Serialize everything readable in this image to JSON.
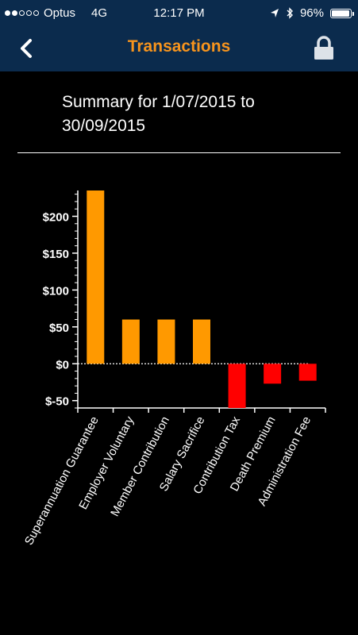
{
  "status": {
    "carrier": "Optus",
    "network": "4G",
    "time": "12:17 PM",
    "battery": "96%",
    "signal_bars": 2
  },
  "header": {
    "title": "Transactions",
    "back_icon": "chevron-left-icon",
    "lock_icon": "lock-icon"
  },
  "summary": {
    "text": "Summary for 1/07/2015 to 30/09/2015"
  },
  "colors": {
    "nav_bg": "#0b2b4d",
    "accent": "#f7941d",
    "positive_bar": "#ff9900",
    "negative_bar": "#ff0000"
  },
  "chart_data": {
    "type": "bar",
    "categories": [
      "Superannuation Guarantee",
      "Employer Voluntary",
      "Member Contribution",
      "Salary Sacrifice",
      "Contribution Tax",
      "Death Premium",
      "Administration Fee"
    ],
    "values": [
      235,
      60,
      60,
      60,
      -60,
      -27,
      -23
    ],
    "ylim": [
      -60,
      235
    ],
    "yticks": [
      -50,
      0,
      50,
      100,
      150,
      200
    ],
    "ytick_labels": [
      "$-50",
      "$0",
      "$50",
      "$100",
      "$150",
      "$200"
    ],
    "title": "",
    "xlabel": "",
    "ylabel": ""
  }
}
